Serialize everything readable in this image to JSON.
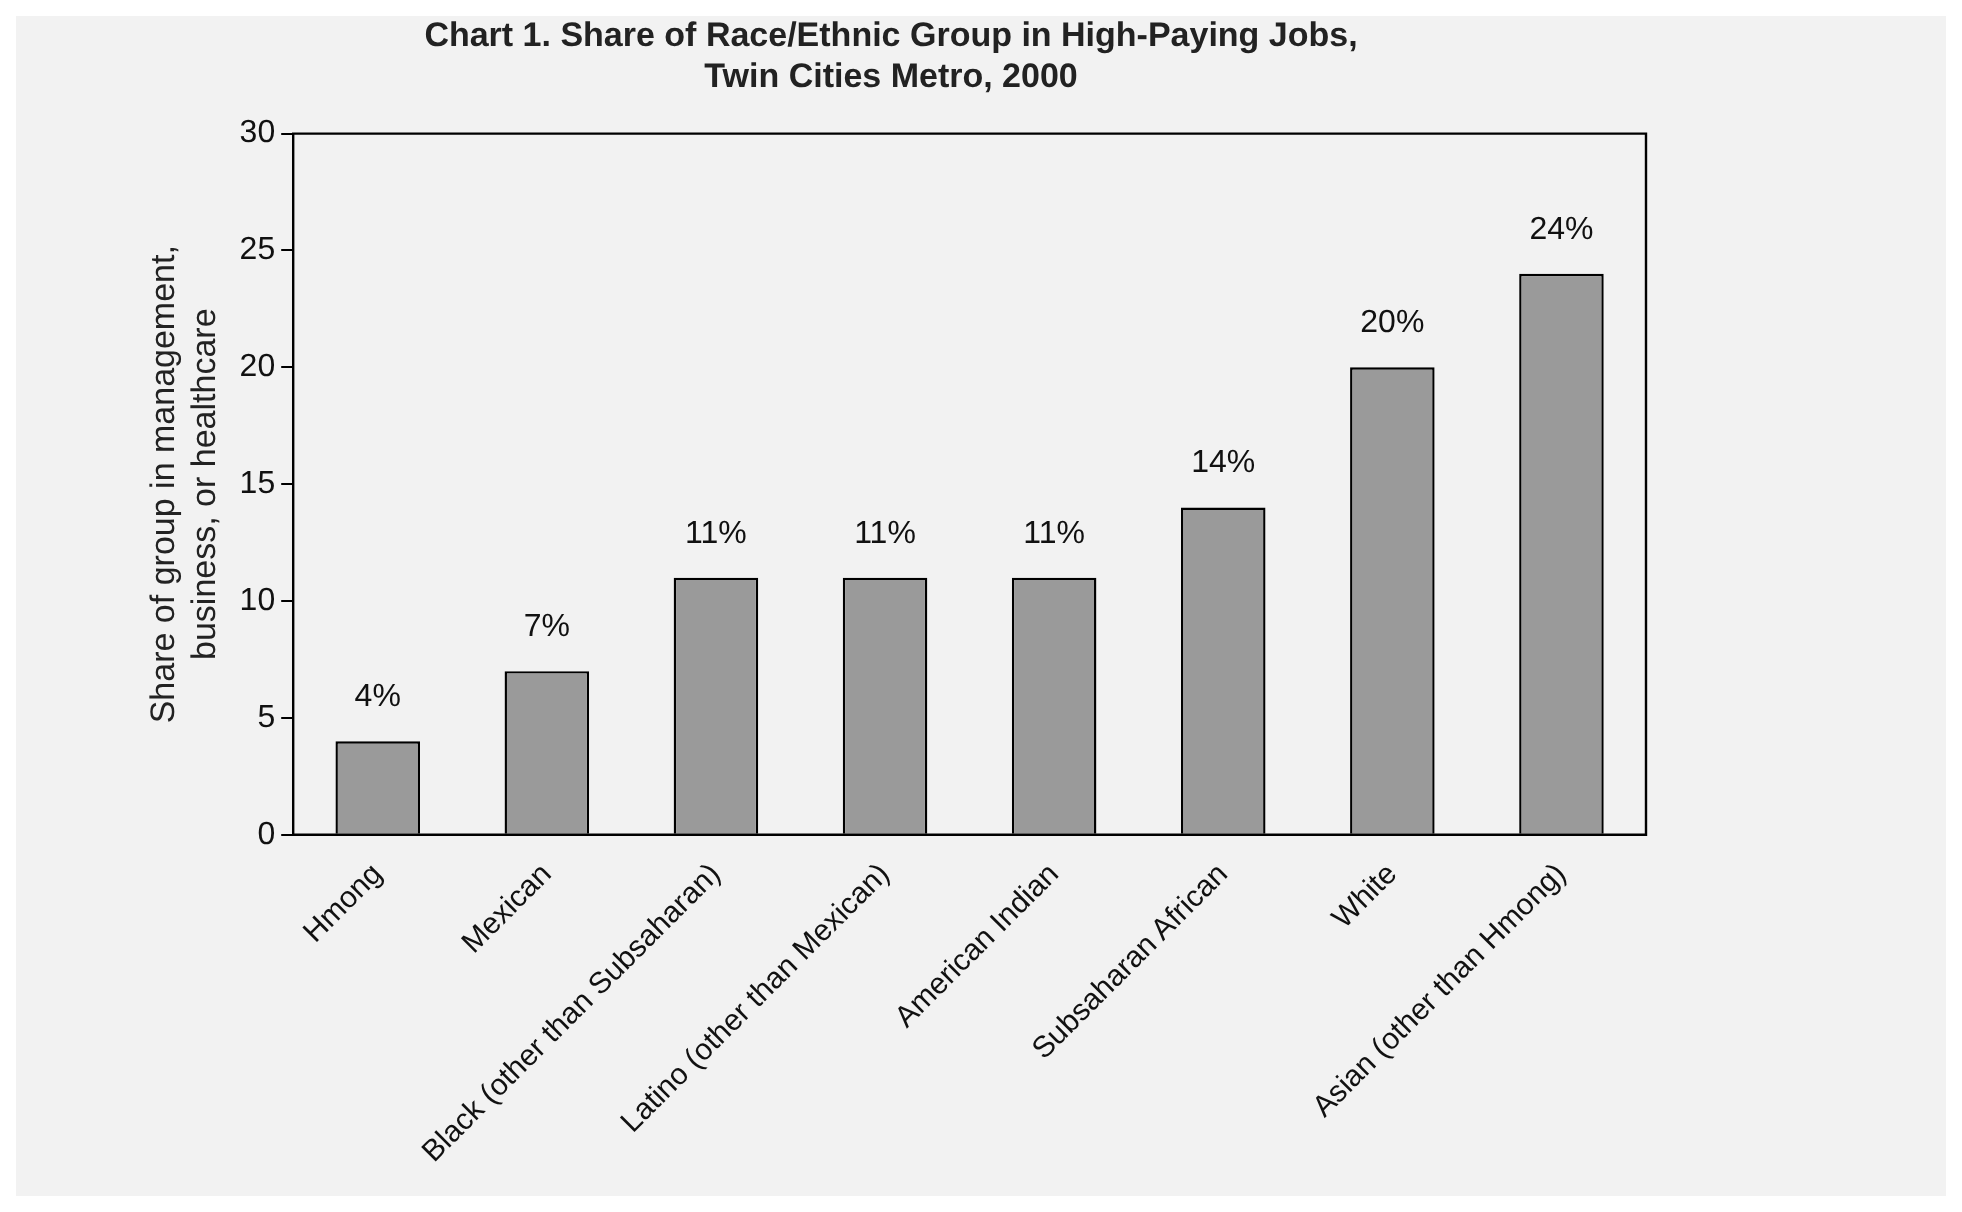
{
  "chart_data": {
    "type": "bar",
    "title": "Chart 1. Share of Race/Ethnic Group in High-Paying Jobs,",
    "subtitle": "Twin Cities Metro, 2000",
    "ylabel": "Share of group in management, business, or healthcare",
    "categories": [
      "Hmong",
      "Mexican",
      "Black (other than Subsaharan)",
      "Latino (other than Mexican)",
      "American Indian",
      "Subsaharan African",
      "White",
      "Asian (other than Hmong)"
    ],
    "values": [
      4,
      7,
      11,
      11,
      11,
      14,
      20,
      24
    ],
    "value_labels": [
      "4%",
      "7%",
      "11%",
      "11%",
      "11%",
      "14%",
      "20%",
      "24%"
    ],
    "color": "#9a9a9a",
    "ylim": [
      0,
      30
    ],
    "yticks": [
      0,
      5,
      10,
      15,
      20,
      25,
      30
    ],
    "grid": false,
    "legend": false
  }
}
